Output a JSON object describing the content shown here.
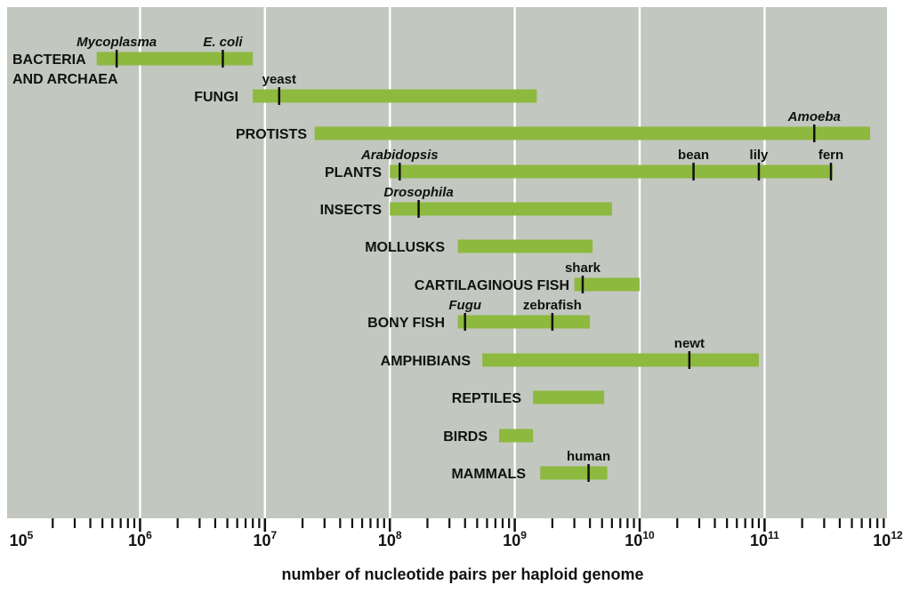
{
  "chart_data": {
    "type": "range-bar",
    "xlabel": "number of nucleotide pairs per haploid genome",
    "x_scale": "log10",
    "xlim": [
      100000,
      1000000000000
    ],
    "x_tick_labels": [
      {
        "base": "10",
        "exp": "5"
      },
      {
        "base": "10",
        "exp": "6"
      },
      {
        "base": "10",
        "exp": "7"
      },
      {
        "base": "10",
        "exp": "8"
      },
      {
        "base": "10",
        "exp": "9"
      },
      {
        "base": "10",
        "exp": "10"
      },
      {
        "base": "10",
        "exp": "11"
      },
      {
        "base": "10",
        "exp": "12"
      }
    ],
    "grid": true,
    "colors": {
      "background": "#c2c7c0",
      "bar": "#8db93e",
      "grid": "#ffffff",
      "marker": "#111111"
    },
    "groups": [
      {
        "label_lines": [
          "BACTERIA",
          "AND ARCHAEA"
        ],
        "min": 450000,
        "max": 8000000,
        "markers": [
          {
            "label": "Mycoplasma",
            "value": 650000,
            "italic": true
          },
          {
            "label": "E. coli",
            "value": 4600000,
            "italic": true
          }
        ]
      },
      {
        "label_lines": [
          "FUNGI"
        ],
        "min": 8000000,
        "max": 1500000000,
        "markers": [
          {
            "label": "yeast",
            "value": 13000000,
            "italic": false
          }
        ]
      },
      {
        "label_lines": [
          "PROTISTS"
        ],
        "min": 25000000,
        "max": 700000000000,
        "markers": [
          {
            "label": "Amoeba",
            "value": 250000000000,
            "italic": true
          }
        ]
      },
      {
        "label_lines": [
          "PLANTS"
        ],
        "min": 100000000,
        "max": 350000000000,
        "markers": [
          {
            "label": "Arabidopsis",
            "value": 120000000,
            "italic": true
          },
          {
            "label": "bean",
            "value": 27000000000,
            "italic": false
          },
          {
            "label": "lily",
            "value": 90000000000,
            "italic": false
          },
          {
            "label": "fern",
            "value": 340000000000,
            "italic": false
          }
        ]
      },
      {
        "label_lines": [
          "INSECTS"
        ],
        "min": 100000000,
        "max": 6000000000,
        "markers": [
          {
            "label": "Drosophila",
            "value": 170000000,
            "italic": true
          }
        ]
      },
      {
        "label_lines": [
          "MOLLUSKS"
        ],
        "min": 350000000,
        "max": 4200000000,
        "markers": []
      },
      {
        "label_lines": [
          "CARTILAGINOUS FISH"
        ],
        "min": 3000000000,
        "max": 10000000000,
        "markers": [
          {
            "label": "shark",
            "value": 3500000000,
            "italic": false
          }
        ]
      },
      {
        "label_lines": [
          "BONY FISH"
        ],
        "min": 350000000,
        "max": 4000000000,
        "markers": [
          {
            "label": "Fugu",
            "value": 400000000,
            "italic": true
          },
          {
            "label": "zebrafish",
            "value": 2000000000,
            "italic": false
          }
        ]
      },
      {
        "label_lines": [
          "AMPHIBIANS"
        ],
        "min": 550000000,
        "max": 90000000000,
        "markers": [
          {
            "label": "newt",
            "value": 25000000000,
            "italic": false
          }
        ]
      },
      {
        "label_lines": [
          "REPTILES"
        ],
        "min": 1400000000,
        "max": 5200000000,
        "markers": []
      },
      {
        "label_lines": [
          "BIRDS"
        ],
        "min": 750000000,
        "max": 1400000000,
        "markers": []
      },
      {
        "label_lines": [
          "MAMMALS"
        ],
        "min": 1600000000,
        "max": 5500000000,
        "markers": [
          {
            "label": "human",
            "value": 3900000000,
            "italic": false
          }
        ]
      }
    ]
  }
}
